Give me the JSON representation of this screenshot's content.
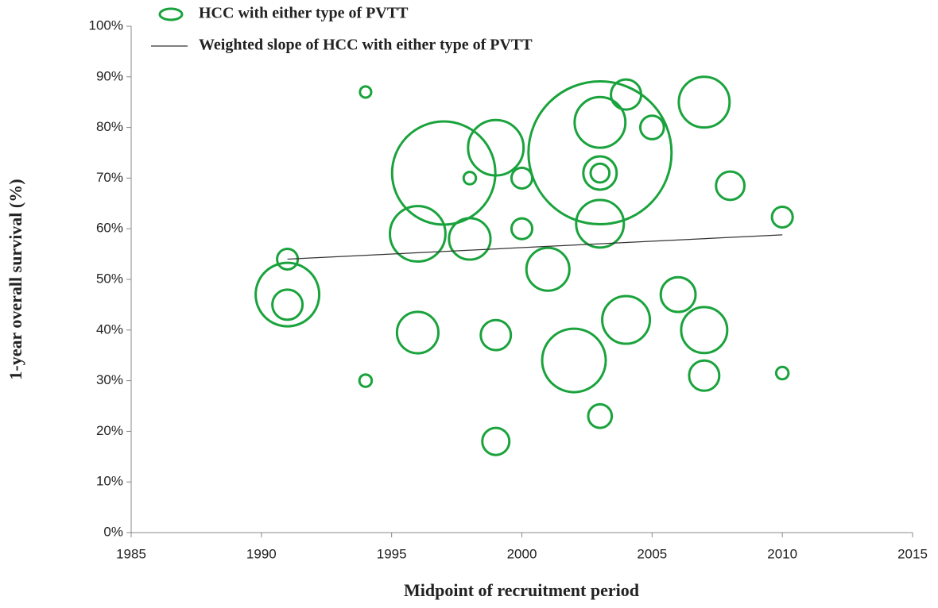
{
  "chart_data": {
    "type": "bubble",
    "x_label": "Midpoint of recruitment period",
    "y_label": "1-year overall survival (%)",
    "xlim": [
      1985,
      2015
    ],
    "xticks": [
      1985,
      1990,
      1995,
      2000,
      2005,
      2010,
      2015
    ],
    "ylim": [
      0,
      100
    ],
    "yticks": [
      {
        "value": 0,
        "label": "0%"
      },
      {
        "value": 10,
        "label": "10%"
      },
      {
        "value": 20,
        "label": "20%"
      },
      {
        "value": 30,
        "label": "30%"
      },
      {
        "value": 40,
        "label": "40%"
      },
      {
        "value": 50,
        "label": "50%"
      },
      {
        "value": 60,
        "label": "60%"
      },
      {
        "value": 70,
        "label": "70%"
      },
      {
        "value": 80,
        "label": "80%"
      },
      {
        "value": 90,
        "label": "90%"
      },
      {
        "value": 100,
        "label": "100%"
      }
    ],
    "legend": "top",
    "series": [
      {
        "name": "HCC with either type of PVTT",
        "color": "#1aa33c",
        "x": [
          1994,
          1994,
          1991,
          1991,
          1991,
          1996,
          1996,
          1997,
          1998,
          1998,
          1999,
          1999,
          1999,
          2000,
          2000,
          2001,
          2002,
          2003,
          2003,
          2003,
          2003,
          2003,
          2003,
          2004,
          2004,
          2005,
          2006,
          2007,
          2007,
          2007,
          2008,
          2010,
          2010
        ],
        "y": [
          87,
          30,
          54,
          47,
          45,
          59,
          39.5,
          71,
          70,
          58,
          76,
          39,
          18,
          70,
          60,
          52,
          34,
          75,
          81,
          71,
          71,
          61,
          23,
          86.5,
          42,
          80,
          47,
          85,
          40,
          31,
          68.5,
          62.3,
          31.5
        ],
        "sizes": [
          5,
          6,
          17,
          160,
          36,
          122,
          68,
          422,
          6,
          68,
          122,
          36,
          29,
          17,
          17,
          73,
          160,
          810,
          102,
          44,
          14,
          90,
          22,
          36,
          90,
          22,
          48,
          102,
          84,
          36,
          32,
          17,
          6
        ]
      },
      {
        "name": "Weighted slope of HCC with either type of PVTT",
        "color": "#333333",
        "type": "line",
        "x": [
          1991,
          2010
        ],
        "y": [
          54,
          58.8
        ]
      }
    ]
  }
}
